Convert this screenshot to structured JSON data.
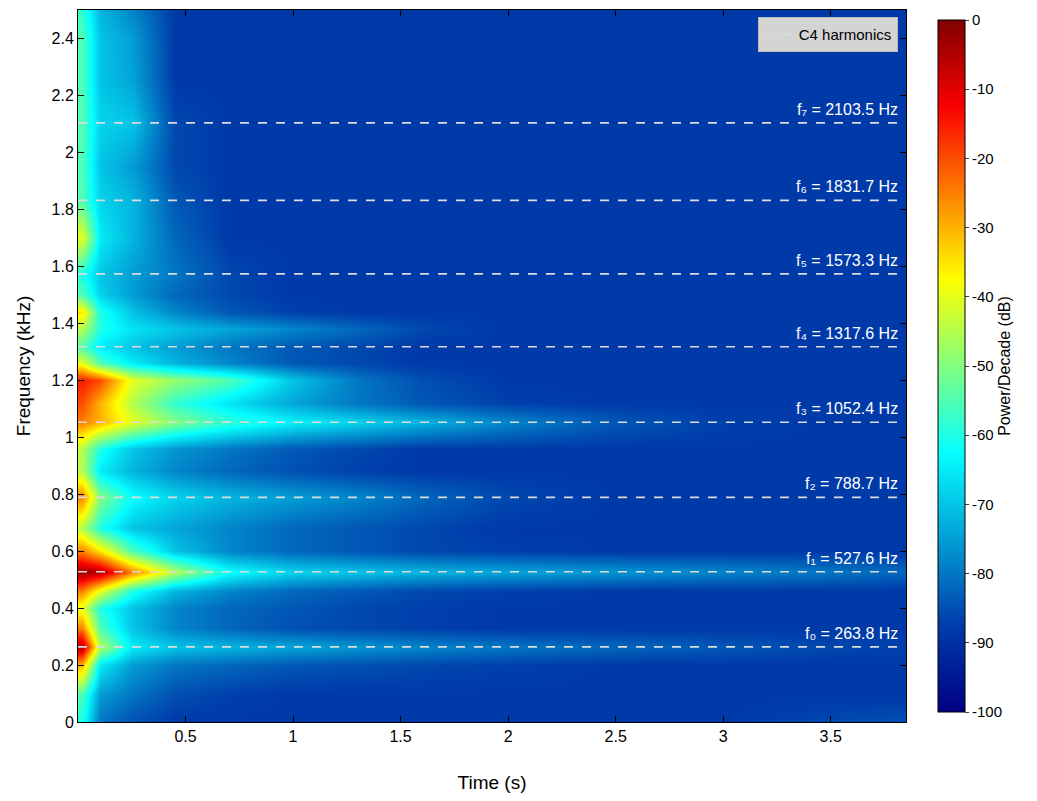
{
  "chart_data": {
    "type": "heatmap",
    "x_label": "Time (s)",
    "y_label": "Frequency (kHz)",
    "x": [
      0.02,
      0.1,
      0.25,
      0.45,
      0.7,
      1.0,
      1.3,
      1.6,
      2.0,
      2.5,
      3.0,
      3.5,
      3.85
    ],
    "y": [
      0.0,
      0.1,
      0.2,
      0.264,
      0.33,
      0.4,
      0.46,
      0.528,
      0.6,
      0.68,
      0.789,
      0.88,
      0.96,
      1.052,
      1.12,
      1.2,
      1.26,
      1.318,
      1.38,
      1.44,
      1.5,
      1.573,
      1.7,
      1.832,
      1.95,
      2.104,
      2.25,
      2.4,
      2.5
    ],
    "z": [
      [
        -60,
        -80,
        -85,
        -88,
        -88,
        -88,
        -88,
        -88,
        -88,
        -88,
        -88,
        -86,
        -85
      ],
      [
        -55,
        -75,
        -80,
        -85,
        -87,
        -88,
        -88,
        -88,
        -88,
        -88,
        -88,
        -88,
        -88
      ],
      [
        -30,
        -65,
        -75,
        -80,
        -82,
        -84,
        -85,
        -86,
        -87,
        -88,
        -88,
        -88,
        -88
      ],
      [
        -5,
        -45,
        -65,
        -70,
        -72,
        -74,
        -76,
        -78,
        -80,
        -82,
        -84,
        -86,
        -87
      ],
      [
        -25,
        -55,
        -70,
        -78,
        -82,
        -85,
        -86,
        -87,
        -88,
        -88,
        -88,
        -88,
        -88
      ],
      [
        -40,
        -60,
        -70,
        -78,
        -82,
        -84,
        -86,
        -87,
        -88,
        -88,
        -88,
        -88,
        -88
      ],
      [
        -25,
        -40,
        -60,
        -72,
        -78,
        -82,
        -84,
        -86,
        -87,
        -88,
        -88,
        -88,
        -88
      ],
      [
        -3,
        -5,
        -25,
        -45,
        -62,
        -68,
        -70,
        -72,
        -74,
        -76,
        -78,
        -80,
        -82
      ],
      [
        -25,
        -35,
        -55,
        -70,
        -78,
        -82,
        -84,
        -86,
        -87,
        -88,
        -88,
        -88,
        -88
      ],
      [
        -45,
        -60,
        -70,
        -74,
        -78,
        -82,
        -84,
        -86,
        -88,
        -88,
        -88,
        -88,
        -88
      ],
      [
        -25,
        -50,
        -62,
        -68,
        -72,
        -75,
        -78,
        -82,
        -86,
        -88,
        -88,
        -88,
        -88
      ],
      [
        -45,
        -65,
        -72,
        -78,
        -82,
        -85,
        -87,
        -88,
        -88,
        -88,
        -88,
        -88,
        -88
      ],
      [
        -45,
        -60,
        -70,
        -76,
        -80,
        -84,
        -86,
        -88,
        -88,
        -88,
        -88,
        -88,
        -88
      ],
      [
        -25,
        -30,
        -40,
        -50,
        -58,
        -64,
        -68,
        -72,
        -78,
        -84,
        -87,
        -88,
        -88
      ],
      [
        -20,
        -30,
        -45,
        -58,
        -66,
        -74,
        -80,
        -84,
        -87,
        -88,
        -88,
        -88,
        -88
      ],
      [
        -15,
        -20,
        -40,
        -48,
        -55,
        -70,
        -80,
        -85,
        -88,
        -88,
        -88,
        -88,
        -88
      ],
      [
        -40,
        -55,
        -65,
        -72,
        -78,
        -84,
        -86,
        -88,
        -88,
        -88,
        -88,
        -88,
        -88
      ],
      [
        -55,
        -65,
        -70,
        -75,
        -80,
        -84,
        -86,
        -88,
        -88,
        -88,
        -88,
        -88,
        -88
      ],
      [
        -45,
        -60,
        -66,
        -70,
        -74,
        -78,
        -82,
        -86,
        -88,
        -88,
        -88,
        -88,
        -88
      ],
      [
        -35,
        -60,
        -70,
        -78,
        -84,
        -87,
        -88,
        -88,
        -88,
        -88,
        -88,
        -88,
        -88
      ],
      [
        -55,
        -68,
        -75,
        -82,
        -86,
        -88,
        -88,
        -88,
        -88,
        -88,
        -88,
        -88,
        -88
      ],
      [
        -60,
        -70,
        -75,
        -80,
        -86,
        -88,
        -88,
        -88,
        -88,
        -88,
        -88,
        -88,
        -88
      ],
      [
        -40,
        -65,
        -72,
        -82,
        -88,
        -88,
        -88,
        -88,
        -88,
        -88,
        -88,
        -88,
        -88
      ],
      [
        -55,
        -68,
        -72,
        -84,
        -88,
        -88,
        -88,
        -88,
        -88,
        -88,
        -88,
        -88,
        -88
      ],
      [
        -55,
        -70,
        -75,
        -86,
        -88,
        -88,
        -88,
        -88,
        -88,
        -88,
        -88,
        -88,
        -88
      ],
      [
        -55,
        -68,
        -70,
        -86,
        -88,
        -88,
        -88,
        -88,
        -88,
        -88,
        -88,
        -88,
        -88
      ],
      [
        -55,
        -70,
        -74,
        -88,
        -88,
        -88,
        -88,
        -88,
        -88,
        -88,
        -88,
        -88,
        -88
      ],
      [
        -55,
        -70,
        -75,
        -88,
        -88,
        -88,
        -88,
        -88,
        -88,
        -88,
        -88,
        -88,
        -88
      ],
      [
        -58,
        -72,
        -78,
        -88,
        -88,
        -88,
        -88,
        -88,
        -88,
        -88,
        -88,
        -88,
        -88
      ]
    ],
    "xlim": [
      0,
      3.85
    ],
    "ylim": [
      0,
      2.5
    ],
    "xticks": [
      0.5,
      1,
      1.5,
      2,
      2.5,
      3,
      3.5
    ],
    "yticks": [
      0,
      0.2,
      0.4,
      0.6,
      0.8,
      1,
      1.2,
      1.4,
      1.6,
      1.8,
      2,
      2.2,
      2.4
    ],
    "colorbar": {
      "title": "Power/Decade (dB)",
      "range": [
        -100,
        0
      ],
      "ticks": [
        -100,
        -90,
        -80,
        -70,
        -60,
        -50,
        -40,
        -30,
        -20,
        -10,
        0
      ]
    },
    "series": [
      {
        "name": "C4 harmonics",
        "color": "#dcdcdc",
        "line_style": "dash",
        "values": [
          0.2638,
          0.5276,
          0.7887,
          1.0524,
          1.3176,
          1.5733,
          1.8317,
          2.1035
        ],
        "value_labels": [
          "f₀ = 263.8 Hz",
          "f₁ = 527.6 Hz",
          "f₂ = 788.7 Hz",
          "f₃ = 1052.4 Hz",
          "f₄ = 1317.6 Hz",
          "f₅ = 1573.3 Hz",
          "f₆ = 1831.7 Hz",
          "f₇ = 2103.5 Hz"
        ]
      }
    ],
    "legend": "upper right",
    "grid": false
  }
}
